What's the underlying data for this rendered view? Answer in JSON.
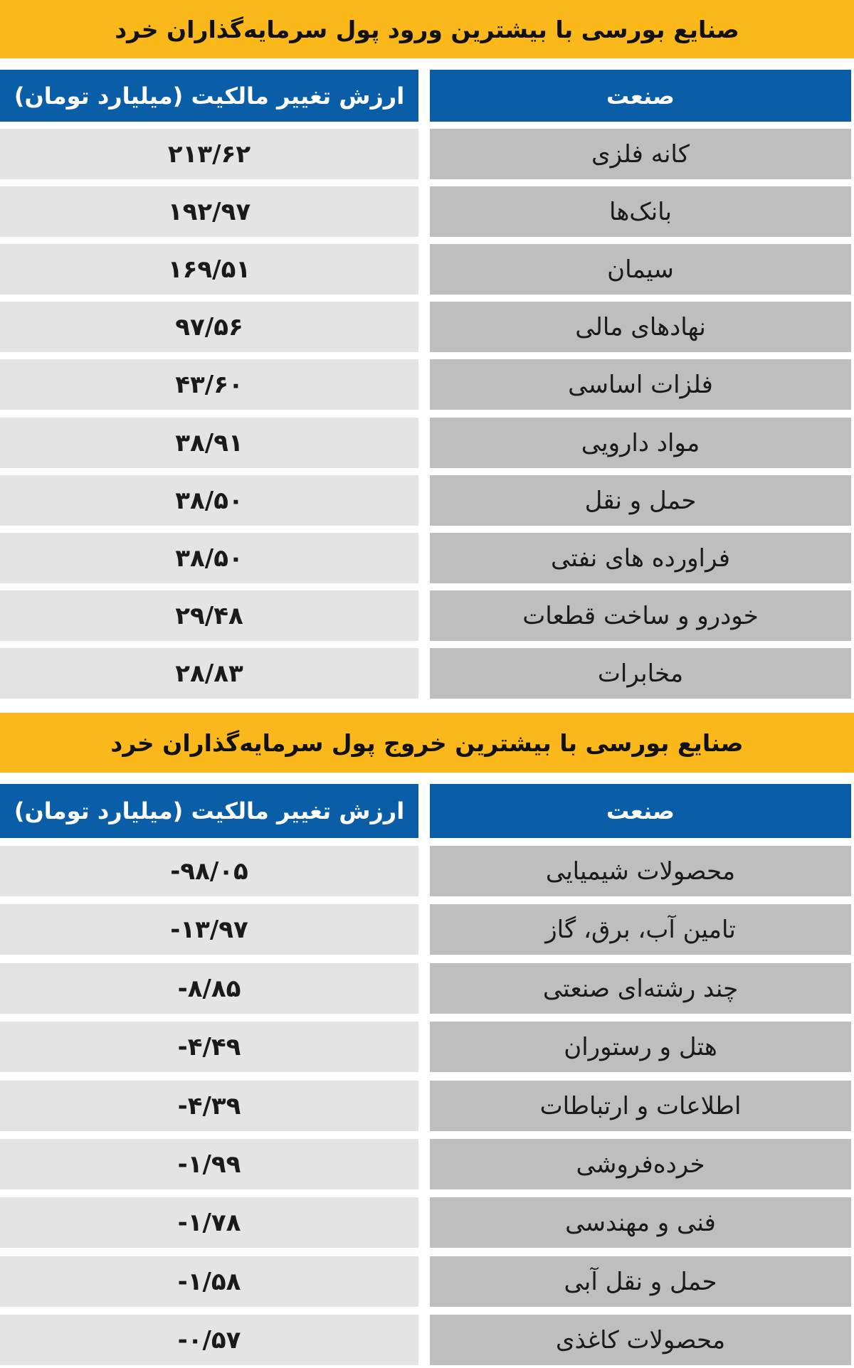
{
  "colors": {
    "title_bg": "#fbb81a",
    "header_bg": "#0a5ea8",
    "value_bg": "#e4e4e5",
    "industry_bg": "#bebebf"
  },
  "inflow": {
    "title": "صنایع بورسی با بیشترین ورود پول سرمایه‌گذاران خرد",
    "col_industry": "صنعت",
    "col_value": "ارزش تغییر مالکیت (میلیارد تومان)",
    "rows": [
      {
        "industry": "کانه فلزی",
        "value": "۲۱۳/۶۲"
      },
      {
        "industry": "بانک‌ها",
        "value": "۱۹۲/۹۷"
      },
      {
        "industry": "سیمان",
        "value": "۱۶۹/۵۱"
      },
      {
        "industry": "نهادهای مالی",
        "value": "۹۷/۵۶"
      },
      {
        "industry": "فلزات اساسی",
        "value": "۴۳/۶۰"
      },
      {
        "industry": "مواد دارویی",
        "value": "۳۸/۹۱"
      },
      {
        "industry": "حمل و نقل",
        "value": "۳۸/۵۰"
      },
      {
        "industry": "فراورده های نفتی",
        "value": "۳۸/۵۰"
      },
      {
        "industry": "خودرو و ساخت قطعات",
        "value": "۲۹/۴۸"
      },
      {
        "industry": "مخابرات",
        "value": "۲۸/۸۳"
      }
    ]
  },
  "outflow": {
    "title": "صنایع بورسی با بیشترین خروج پول سرمایه‌گذاران خرد",
    "col_industry": "صنعت",
    "col_value": "ارزش تغییر مالکیت (میلیارد تومان)",
    "rows": [
      {
        "industry": "محصولات شیمیایی",
        "value": "-۹۸/۰۵"
      },
      {
        "industry": "تامین آب، برق، گاز",
        "value": "-۱۳/۹۷"
      },
      {
        "industry": "چند رشته‌ای صنعتی",
        "value": "-۸/۸۵"
      },
      {
        "industry": "هتل و رستوران",
        "value": "-۴/۴۹"
      },
      {
        "industry": "اطلاعات و ارتباطات",
        "value": "-۴/۳۹"
      },
      {
        "industry": "خرده‌فروشی",
        "value": "-۱/۹۹"
      },
      {
        "industry": "فنی و مهندسی",
        "value": "-۱/۷۸"
      },
      {
        "industry": "حمل و نقل آبی",
        "value": "-۱/۵۸"
      },
      {
        "industry": "محصولات کاغذی",
        "value": "-۰/۵۷"
      }
    ]
  }
}
